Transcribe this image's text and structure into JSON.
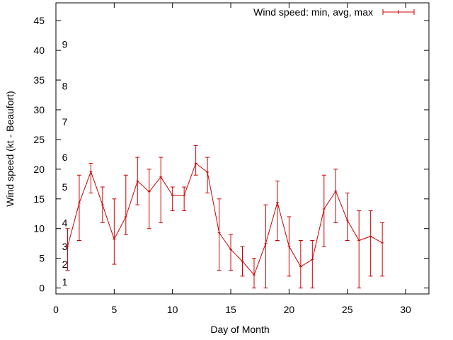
{
  "chart_data": {
    "type": "line",
    "title": "",
    "xlabel": "Day of Month",
    "ylabel": "Wind speed (kt - Beaufort)",
    "xlim": [
      0,
      32
    ],
    "ylim": [
      -1,
      48
    ],
    "xticks": [
      0,
      5,
      10,
      15,
      20,
      25,
      30
    ],
    "yticks": [
      0,
      5,
      10,
      15,
      20,
      25,
      30,
      35,
      40,
      45
    ],
    "grid": false,
    "legend_position": "top-right",
    "series": [
      {
        "name": "Wind speed: min, avg, max",
        "color": "#cc0000",
        "points": [
          {
            "x": 1,
            "avg": 7,
            "min": 3,
            "max": 10
          },
          {
            "x": 2,
            "avg": 14.3,
            "min": 8,
            "max": 19
          },
          {
            "x": 3,
            "avg": 19.6,
            "min": 16,
            "max": 21
          },
          {
            "x": 4,
            "avg": 14,
            "min": 11,
            "max": 17
          },
          {
            "x": 5,
            "avg": 8.2,
            "min": 4,
            "max": 15
          },
          {
            "x": 6,
            "avg": 12,
            "min": 9,
            "max": 19
          },
          {
            "x": 7,
            "avg": 18,
            "min": 14,
            "max": 22
          },
          {
            "x": 8,
            "avg": 16.2,
            "min": 10,
            "max": 20
          },
          {
            "x": 9,
            "avg": 18.7,
            "min": 11,
            "max": 22
          },
          {
            "x": 10,
            "avg": 15.6,
            "min": 13,
            "max": 17
          },
          {
            "x": 11,
            "avg": 15.6,
            "min": 13,
            "max": 17
          },
          {
            "x": 12,
            "avg": 21,
            "min": 19,
            "max": 24
          },
          {
            "x": 13,
            "avg": 19.5,
            "min": 16,
            "max": 22
          },
          {
            "x": 14,
            "avg": 9.3,
            "min": 3,
            "max": 15
          },
          {
            "x": 15,
            "avg": 6.5,
            "min": 3,
            "max": 9
          },
          {
            "x": 16,
            "avg": 4.5,
            "min": 2,
            "max": 7
          },
          {
            "x": 17,
            "avg": 2.2,
            "min": 0,
            "max": 5
          },
          {
            "x": 18,
            "avg": 7.5,
            "min": 0,
            "max": 14
          },
          {
            "x": 19,
            "avg": 14.4,
            "min": 8,
            "max": 18
          },
          {
            "x": 20,
            "avg": 7,
            "min": 2,
            "max": 12
          },
          {
            "x": 21,
            "avg": 3.6,
            "min": 0,
            "max": 8
          },
          {
            "x": 22,
            "avg": 4.8,
            "min": 0,
            "max": 8
          },
          {
            "x": 23,
            "avg": 13.3,
            "min": 7,
            "max": 19
          },
          {
            "x": 24,
            "avg": 16.3,
            "min": 11,
            "max": 20
          },
          {
            "x": 25,
            "avg": 11.4,
            "min": 8,
            "max": 16
          },
          {
            "x": 26,
            "avg": 8,
            "min": 0,
            "max": 13
          },
          {
            "x": 27,
            "avg": 8.7,
            "min": 2,
            "max": 13
          },
          {
            "x": 28,
            "avg": 7.6,
            "min": 2,
            "max": 11
          }
        ]
      }
    ],
    "annotations": [
      {
        "text": "1",
        "x": 0.7,
        "y": 1
      },
      {
        "text": "2",
        "x": 0.7,
        "y": 4
      },
      {
        "text": "3",
        "x": 0.7,
        "y": 7
      },
      {
        "text": "4",
        "x": 0.7,
        "y": 11
      },
      {
        "text": "5",
        "x": 0.7,
        "y": 17
      },
      {
        "text": "6",
        "x": 0.7,
        "y": 22
      },
      {
        "text": "7",
        "x": 0.7,
        "y": 28
      },
      {
        "text": "8",
        "x": 0.7,
        "y": 34
      },
      {
        "text": "9",
        "x": 0.7,
        "y": 41
      }
    ]
  }
}
